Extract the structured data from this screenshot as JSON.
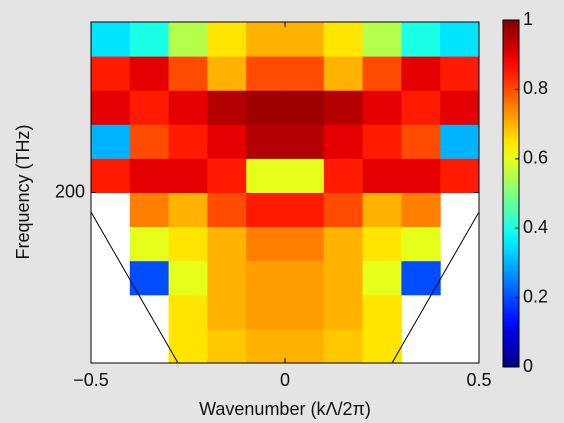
{
  "chart_data": {
    "type": "heatmap",
    "xlabel": "Wavenumber (kΛ/2π)",
    "ylabel": "Frequency (THz)",
    "xlim": [
      -0.5,
      0.5
    ],
    "ylim": [
      150,
      250
    ],
    "xticks": [
      {
        "value": -0.5,
        "label": "−0.5"
      },
      0,
      0.5
    ],
    "yticks": [
      200
    ],
    "x_bins": [
      -0.5,
      -0.4,
      -0.3,
      -0.2,
      -0.1,
      0,
      0.1,
      0.2,
      0.3,
      0.4,
      0.5
    ],
    "y_bins": [
      150,
      160,
      170,
      180,
      190,
      200,
      210,
      220,
      230,
      240,
      250
    ],
    "values": [
      [
        null,
        null,
        0.65,
        0.68,
        0.7,
        0.7,
        0.68,
        0.65,
        null,
        null
      ],
      [
        null,
        null,
        0.65,
        0.7,
        0.72,
        0.72,
        0.7,
        0.65,
        null,
        null
      ],
      [
        null,
        0.2,
        0.6,
        0.7,
        0.72,
        0.72,
        0.7,
        0.6,
        0.2,
        null
      ],
      [
        null,
        0.6,
        0.65,
        0.7,
        0.75,
        0.75,
        0.7,
        0.65,
        0.6,
        null
      ],
      [
        null,
        0.75,
        0.7,
        0.8,
        0.85,
        0.85,
        0.8,
        0.7,
        0.75,
        null
      ],
      [
        0.85,
        0.9,
        0.9,
        0.85,
        0.6,
        0.6,
        0.85,
        0.9,
        0.9,
        0.85
      ],
      [
        0.3,
        0.8,
        0.85,
        0.9,
        0.95,
        0.95,
        0.9,
        0.85,
        0.8,
        0.3
      ],
      [
        0.9,
        0.85,
        0.9,
        0.95,
        0.97,
        0.97,
        0.95,
        0.9,
        0.85,
        0.9
      ],
      [
        0.85,
        0.9,
        0.8,
        0.7,
        0.8,
        0.8,
        0.7,
        0.8,
        0.9,
        0.85
      ],
      [
        0.35,
        0.4,
        0.55,
        0.65,
        0.7,
        0.7,
        0.65,
        0.55,
        0.4,
        0.35
      ]
    ],
    "colormap": "jet",
    "clim": [
      0,
      1
    ],
    "cticks": [
      0,
      0.2,
      0.4,
      0.6,
      0.8,
      1
    ]
  }
}
